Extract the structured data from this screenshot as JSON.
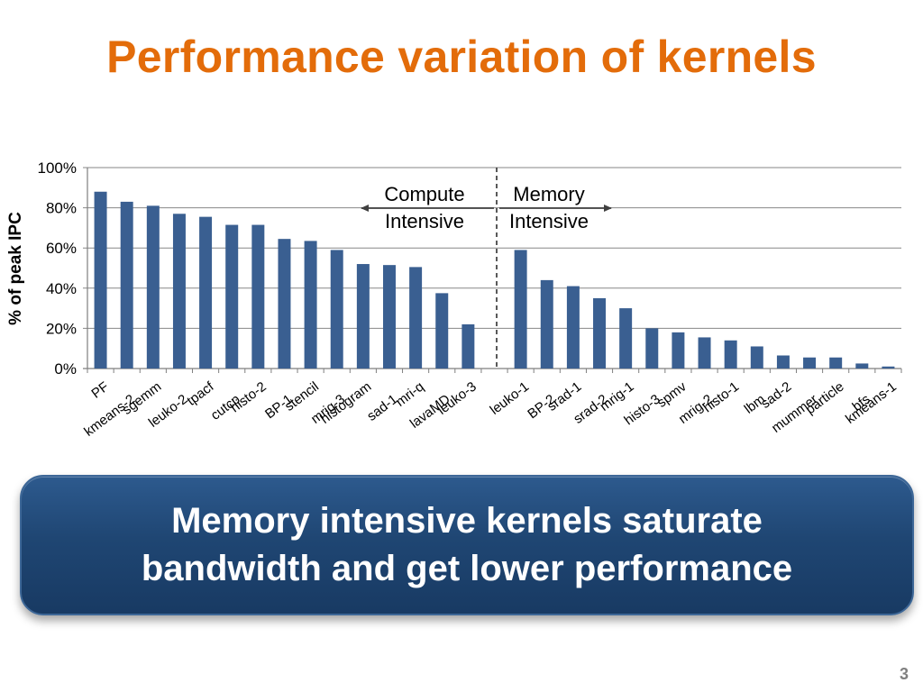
{
  "slide": {
    "title": "Performance variation of kernels",
    "title_color": "#E36C0A",
    "callout": "Memory intensive kernels saturate\nbandwidth and get lower performance",
    "page_number": "3"
  },
  "chart_data": {
    "type": "bar",
    "title": "",
    "xlabel": "",
    "ylabel": "% of peak IPC",
    "ylim": [
      0,
      100
    ],
    "yticks": [
      "0%",
      "20%",
      "40%",
      "60%",
      "80%",
      "100%"
    ],
    "grid": true,
    "bar_color": "#3A5F91",
    "categories": [
      "PF",
      "kmeans-2",
      "sgemm",
      "leuko-2",
      "tpacf",
      "cutcp",
      "histo-2",
      "BP-1",
      "stencil",
      "mrig-3",
      "histogram",
      "sad-1",
      "mri-q",
      "lavaMD",
      "leuko-3",
      "",
      "leuko-1",
      "BP-2",
      "srad-1",
      "srad-2",
      "mrig-1",
      "histo-3",
      "spmv",
      "mrig-2",
      "histo-1",
      "lbm",
      "sad-2",
      "mummer",
      "particle",
      "bfs",
      "kmeans-1"
    ],
    "values": [
      88,
      83,
      81,
      77,
      75.5,
      71.5,
      71.5,
      64.5,
      63.5,
      59,
      52,
      51.5,
      50.5,
      37.5,
      22,
      null,
      59,
      44,
      41,
      35,
      30,
      20,
      18,
      15.5,
      14,
      11,
      6.5,
      5.5,
      5.5,
      2.5,
      1
    ],
    "annotations": {
      "left_label": "Compute\nIntensive",
      "right_label": "Memory\nIntensive"
    }
  }
}
